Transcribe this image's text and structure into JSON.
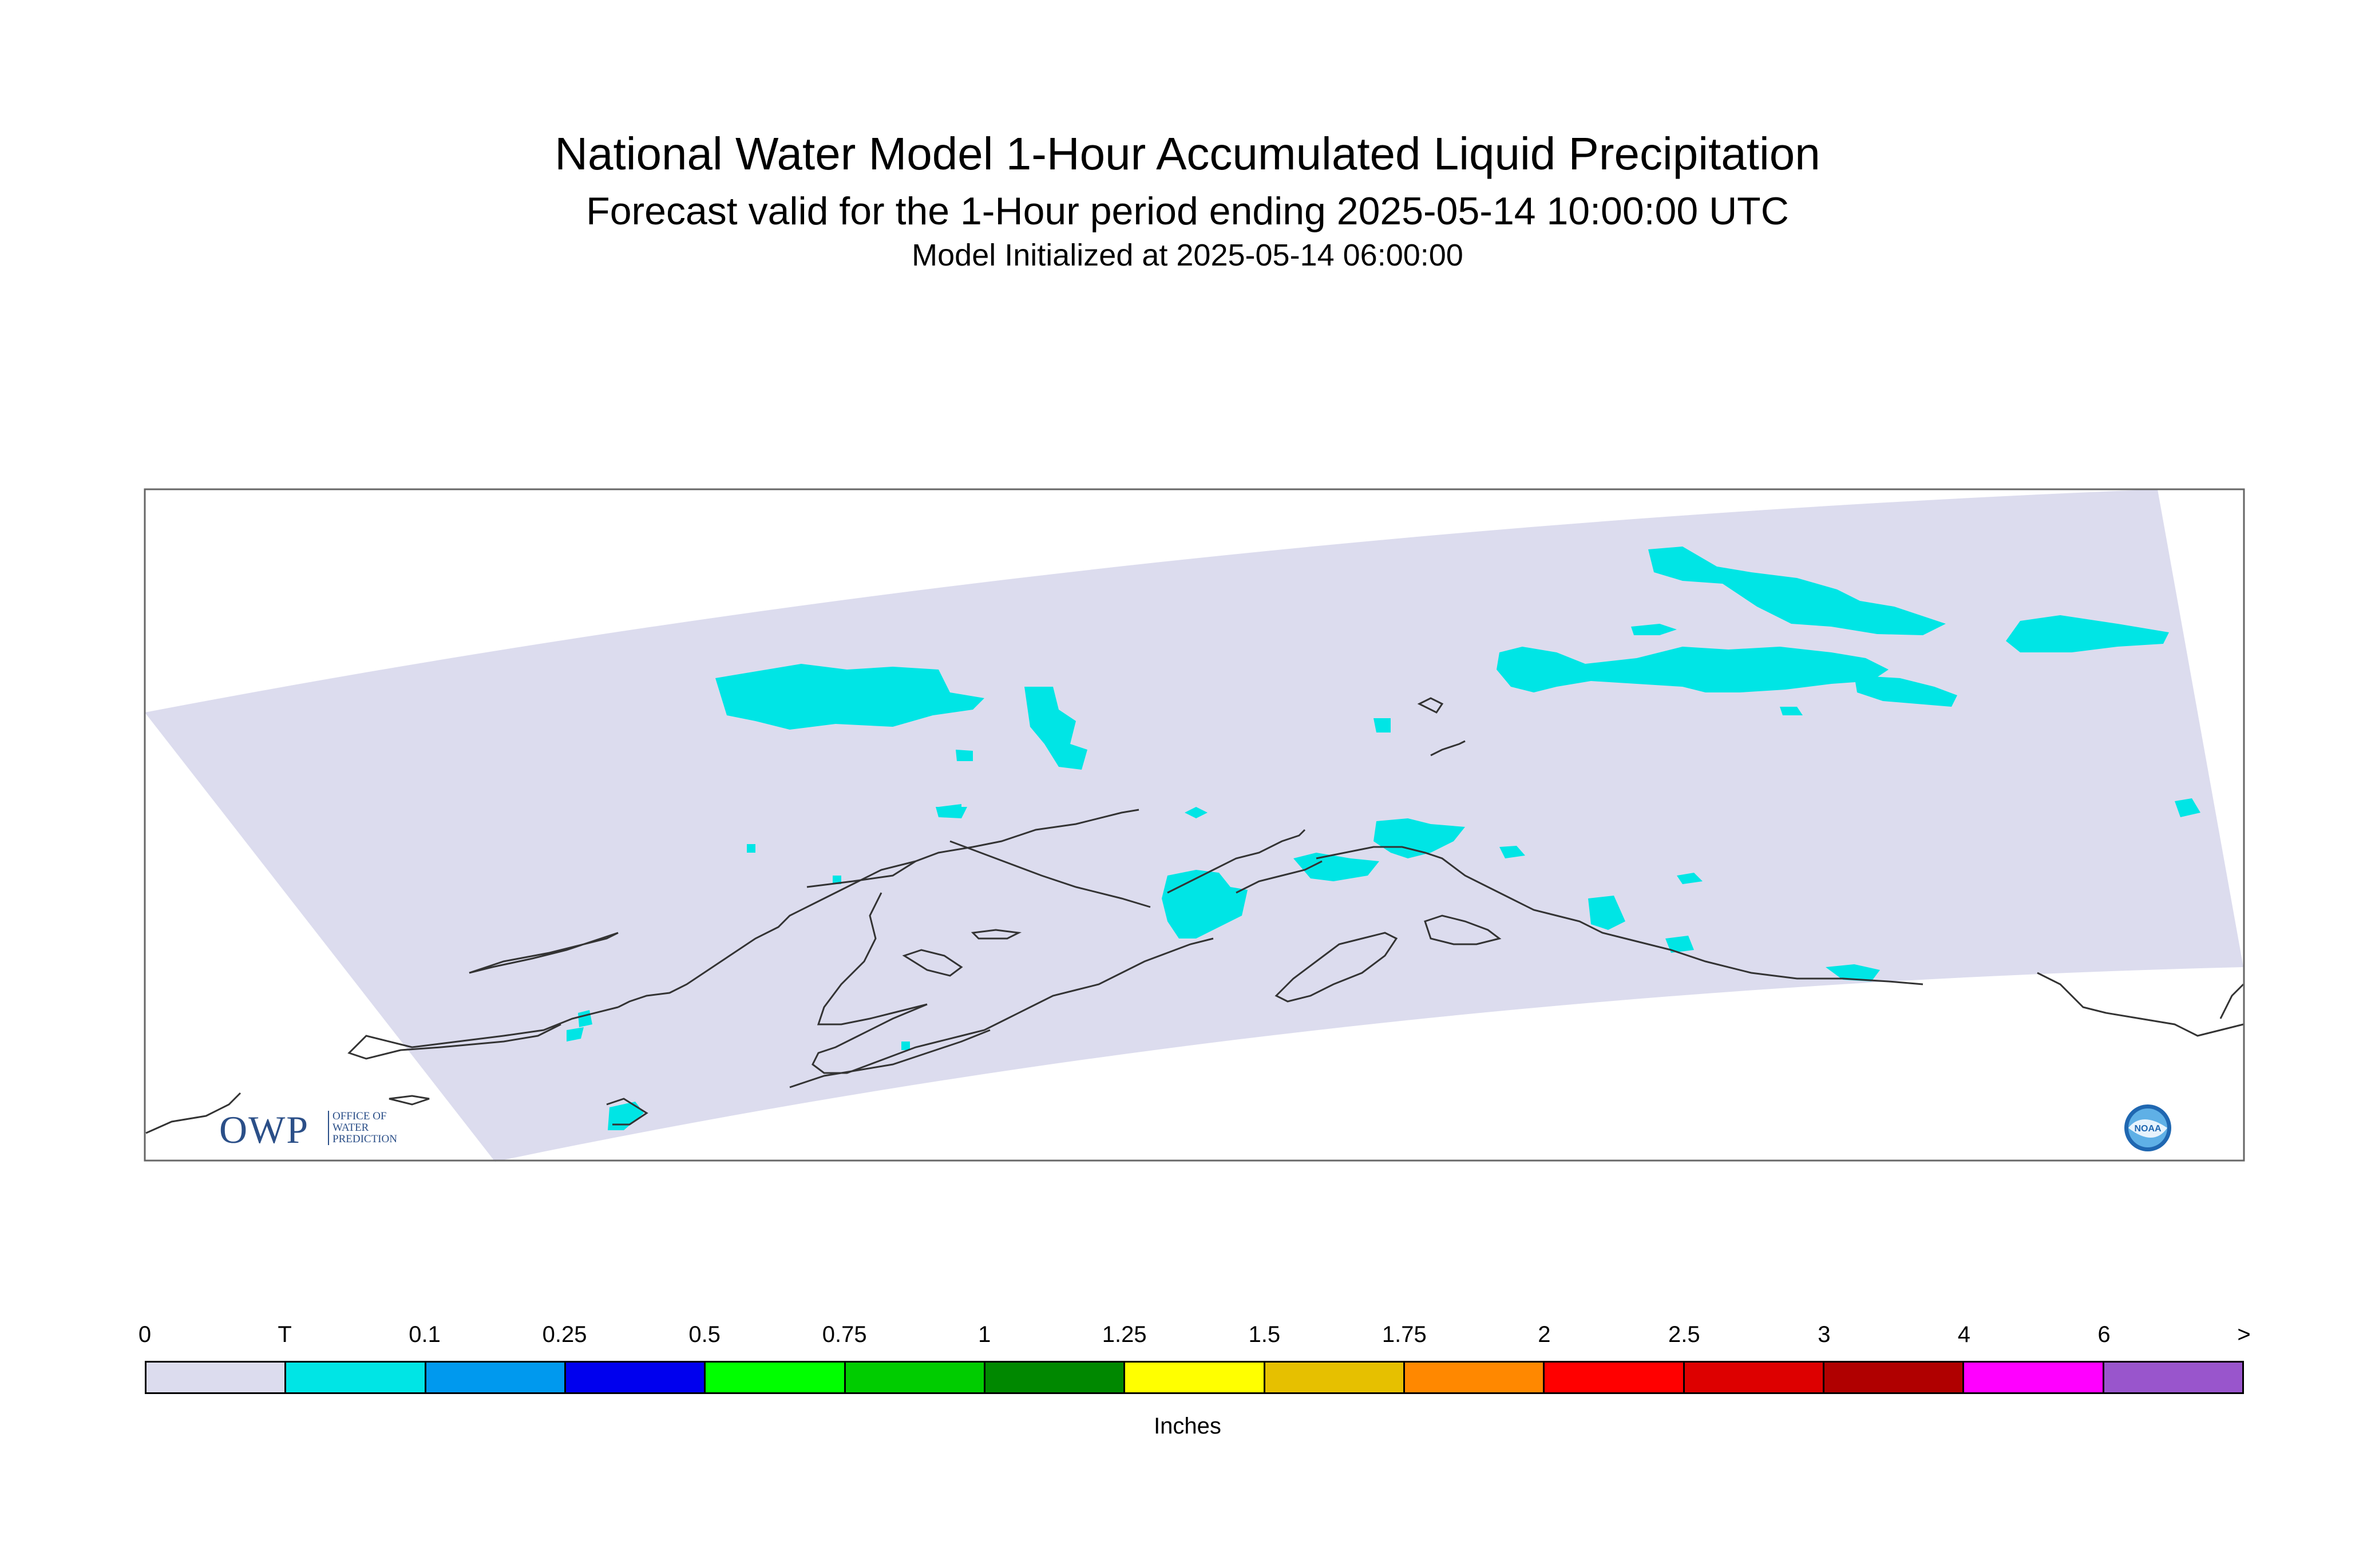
{
  "titles": {
    "main": "National Water Model 1-Hour Accumulated Liquid Precipitation",
    "forecast": "Forecast valid for the 1-Hour period ending 2025-05-14 10:00:00 UTC",
    "init": "Model Initialized at 2025-05-14 06:00:00"
  },
  "legend": {
    "labels": [
      "0",
      "T",
      "0.1",
      "0.25",
      "0.5",
      "0.75",
      "1",
      "1.25",
      "1.5",
      "1.75",
      "2",
      "2.5",
      "3",
      "4",
      "6",
      ">"
    ],
    "colors": [
      "#dcdcee",
      "#00e5e5",
      "#0099ee",
      "#0000ee",
      "#00ff00",
      "#00cc00",
      "#008800",
      "#ffff00",
      "#e6c000",
      "#ff8800",
      "#ff0000",
      "#dd0000",
      "#b00000",
      "#ff00ff",
      "#9955cc"
    ],
    "units": "Inches"
  },
  "map": {
    "domain_color": "#dcdcee",
    "precip_color": "#00e5e5",
    "coastline_color": "#333333"
  },
  "logos": {
    "owp_text": "OWP",
    "owp_small": [
      "OFFICE OF",
      "WATER",
      "PREDICTION"
    ],
    "noaa_text": "NOAA"
  }
}
